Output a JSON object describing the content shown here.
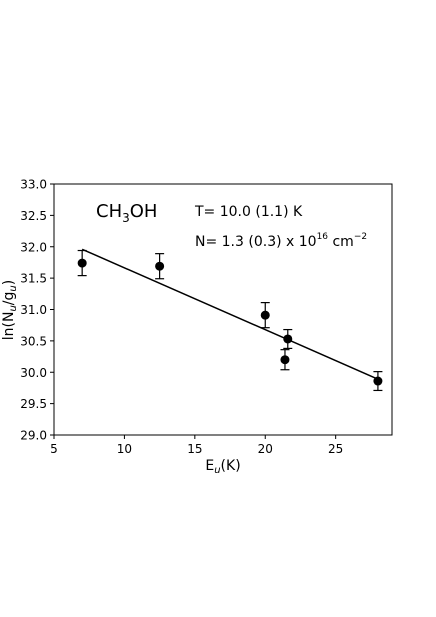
{
  "chart_data": {
    "type": "scatter",
    "xlabel": "E",
    "xlabel_sub": "u",
    "xlabel_unit": "(K)",
    "ylabel_prefix": "ln(N",
    "ylabel_sub1": "u",
    "ylabel_mid": "/g",
    "ylabel_sub2": "u",
    "ylabel_suffix": ")",
    "xlim": [
      5,
      29
    ],
    "ylim": [
      29.0,
      33.0
    ],
    "xticks": [
      5,
      10,
      15,
      20,
      25
    ],
    "xtick_labels": [
      "5",
      "10",
      "15",
      "20",
      "25"
    ],
    "yticks": [
      29.0,
      29.5,
      30.0,
      30.5,
      31.0,
      31.5,
      32.0,
      32.5,
      33.0
    ],
    "ytick_labels": [
      "29.0",
      "29.5",
      "30.0",
      "30.5",
      "31.0",
      "31.5",
      "32.0",
      "32.5",
      "33.0"
    ],
    "grid": false,
    "points": [
      {
        "x": 7.0,
        "y": 31.74,
        "err": 0.2
      },
      {
        "x": 12.5,
        "y": 31.69,
        "err": 0.2
      },
      {
        "x": 20.0,
        "y": 30.91,
        "err": 0.2
      },
      {
        "x": 21.4,
        "y": 30.2,
        "err": 0.16
      },
      {
        "x": 21.6,
        "y": 30.53,
        "err": 0.15
      },
      {
        "x": 28.0,
        "y": 29.86,
        "err": 0.15
      }
    ],
    "fit_line": {
      "x": [
        7.0,
        28.0
      ],
      "y": [
        31.96,
        29.89
      ]
    },
    "annotations": {
      "molecule_pre": "CH",
      "molecule_sub": "3",
      "molecule_post": "OH",
      "temperature": "T= 10.0 (1.1) K",
      "column_density_pre": "N= 1.3 (0.3) x 10",
      "column_density_exp": "16",
      "column_density_unit": " cm",
      "column_density_unit_exp": "−2"
    }
  }
}
